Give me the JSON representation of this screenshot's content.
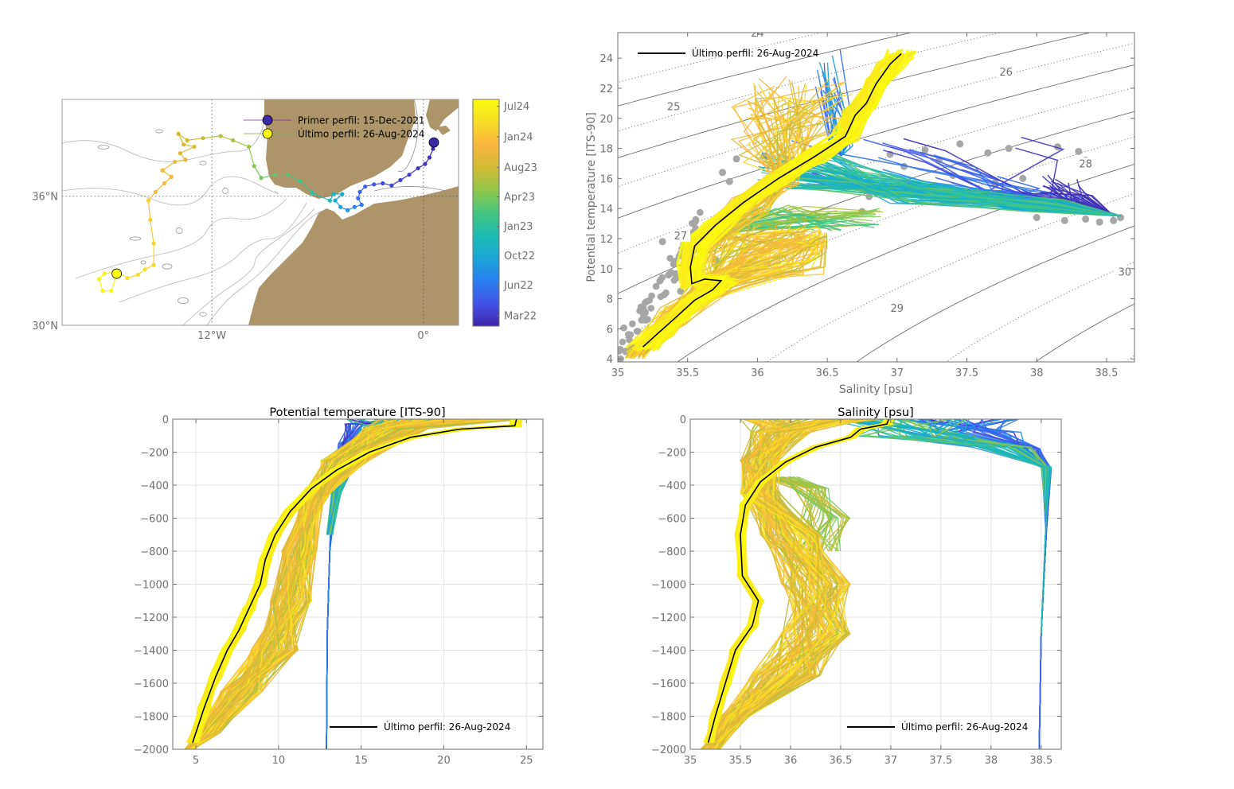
{
  "colors": {
    "land": "#ad9469",
    "axis": "#707070",
    "grid": "#e6e6e6",
    "contour": "#9a9a9a",
    "clim_points": "#a6a6a6",
    "last_profile": "#000000",
    "first_marker": "#3a2aa8",
    "last_marker": "#ffff10",
    "colormap": [
      "#3e26a8",
      "#4353e8",
      "#2a7ff1",
      "#1aa7d6",
      "#1cbcb2",
      "#45c67f",
      "#91c64a",
      "#d2ba32",
      "#f9b63e",
      "#f8dc27",
      "#f9fb0e"
    ]
  },
  "chart_data": [
    {
      "id": "map",
      "type": "scatter",
      "title": "",
      "xlabel": "",
      "ylabel": "",
      "xlim": [
        -20.5,
        2.0
      ],
      "ylim": [
        30.0,
        40.5
      ],
      "x_ticks": [
        {
          "value": -12,
          "label": "12°W"
        },
        {
          "value": 0,
          "label": "0°"
        }
      ],
      "y_ticks": [
        {
          "value": 30,
          "label": "30°N"
        },
        {
          "value": 36,
          "label": "36°N"
        }
      ],
      "grid": "dotted",
      "legend": [
        {
          "label": "Primer perfil: 15-Dec-2021",
          "marker_color": "#3a2aa8",
          "line_color": "#7b2e8e"
        },
        {
          "label": "Último perfil: 26-Aug-2024",
          "marker_color": "#ffff10",
          "line_color": "#6ab43c"
        }
      ],
      "legend_placement": "top-right",
      "first_profile": {
        "lon": 0.6,
        "lat": 38.5
      },
      "last_profile": {
        "lon": -17.4,
        "lat": 32.4
      },
      "track": [
        {
          "lon": 0.6,
          "lat": 38.5,
          "t": 0.0
        },
        {
          "lon": 0.55,
          "lat": 38.2,
          "t": 0.01
        },
        {
          "lon": 0.35,
          "lat": 37.8,
          "t": 0.02
        },
        {
          "lon": 0.1,
          "lat": 37.5,
          "t": 0.03
        },
        {
          "lon": -0.3,
          "lat": 37.3,
          "t": 0.04
        },
        {
          "lon": -0.8,
          "lat": 37.0,
          "t": 0.05
        },
        {
          "lon": -1.3,
          "lat": 36.75,
          "t": 0.06
        },
        {
          "lon": -1.8,
          "lat": 36.5,
          "t": 0.07
        },
        {
          "lon": -2.3,
          "lat": 36.6,
          "t": 0.08
        },
        {
          "lon": -2.8,
          "lat": 36.55,
          "t": 0.1
        },
        {
          "lon": -3.3,
          "lat": 36.45,
          "t": 0.12
        },
        {
          "lon": -3.6,
          "lat": 36.2,
          "t": 0.14
        },
        {
          "lon": -3.7,
          "lat": 35.9,
          "t": 0.16
        },
        {
          "lon": -3.5,
          "lat": 35.6,
          "t": 0.18
        },
        {
          "lon": -3.9,
          "lat": 35.5,
          "t": 0.21
        },
        {
          "lon": -4.3,
          "lat": 35.35,
          "t": 0.24
        },
        {
          "lon": -4.7,
          "lat": 35.5,
          "t": 0.27
        },
        {
          "lon": -5.0,
          "lat": 35.8,
          "t": 0.3
        },
        {
          "lon": -4.6,
          "lat": 36.1,
          "t": 0.33
        },
        {
          "lon": -5.1,
          "lat": 36.1,
          "t": 0.36
        },
        {
          "lon": -5.3,
          "lat": 35.8,
          "t": 0.4
        },
        {
          "lon": -6.3,
          "lat": 36.15,
          "t": 0.44
        },
        {
          "lon": -7.0,
          "lat": 36.7,
          "t": 0.48
        },
        {
          "lon": -7.7,
          "lat": 37.0,
          "t": 0.52
        },
        {
          "lon": -8.4,
          "lat": 37.0,
          "t": 0.54
        },
        {
          "lon": -9.2,
          "lat": 36.85,
          "t": 0.56
        },
        {
          "lon": -9.6,
          "lat": 37.4,
          "t": 0.59
        },
        {
          "lon": -9.9,
          "lat": 38.3,
          "t": 0.62
        },
        {
          "lon": -10.8,
          "lat": 38.6,
          "t": 0.64
        },
        {
          "lon": -11.5,
          "lat": 38.8,
          "t": 0.66
        },
        {
          "lon": -12.5,
          "lat": 38.7,
          "t": 0.68
        },
        {
          "lon": -13.4,
          "lat": 38.6,
          "t": 0.7
        },
        {
          "lon": -13.9,
          "lat": 38.9,
          "t": 0.71
        },
        {
          "lon": -13.6,
          "lat": 38.4,
          "t": 0.72
        },
        {
          "lon": -13.0,
          "lat": 38.3,
          "t": 0.73
        },
        {
          "lon": -13.8,
          "lat": 38.0,
          "t": 0.74
        },
        {
          "lon": -13.5,
          "lat": 37.7,
          "t": 0.75
        },
        {
          "lon": -14.1,
          "lat": 37.6,
          "t": 0.76
        },
        {
          "lon": -14.8,
          "lat": 37.2,
          "t": 0.78
        },
        {
          "lon": -14.3,
          "lat": 36.9,
          "t": 0.79
        },
        {
          "lon": -14.7,
          "lat": 36.6,
          "t": 0.8
        },
        {
          "lon": -15.2,
          "lat": 36.2,
          "t": 0.82
        },
        {
          "lon": -15.6,
          "lat": 35.8,
          "t": 0.84
        },
        {
          "lon": -15.5,
          "lat": 34.9,
          "t": 0.86
        },
        {
          "lon": -15.3,
          "lat": 33.8,
          "t": 0.88
        },
        {
          "lon": -15.3,
          "lat": 32.8,
          "t": 0.89
        },
        {
          "lon": -15.8,
          "lat": 32.6,
          "t": 0.9
        },
        {
          "lon": -16.2,
          "lat": 32.35,
          "t": 0.91
        },
        {
          "lon": -16.8,
          "lat": 32.2,
          "t": 0.93
        },
        {
          "lon": -17.4,
          "lat": 32.5,
          "t": 0.95
        },
        {
          "lon": -18.1,
          "lat": 32.4,
          "t": 0.96
        },
        {
          "lon": -18.4,
          "lat": 32.15,
          "t": 0.97
        },
        {
          "lon": -18.2,
          "lat": 31.6,
          "t": 0.98
        },
        {
          "lon": -17.7,
          "lat": 31.6,
          "t": 0.99
        },
        {
          "lon": -17.4,
          "lat": 32.4,
          "t": 1.0
        }
      ]
    },
    {
      "id": "colorbar",
      "type": "heatmap",
      "title": "",
      "range_labels_note": "time colorbar",
      "tick_labels": [
        "Jul24",
        "Jan24",
        "Aug23",
        "Apr23",
        "Jan23",
        "Oct22",
        "Jun22",
        "Mar22"
      ],
      "tick_positions": [
        0.97,
        0.835,
        0.7,
        0.57,
        0.44,
        0.31,
        0.18,
        0.045
      ]
    },
    {
      "id": "ts",
      "type": "line",
      "title": "",
      "xlabel": "Salinity [psu]",
      "ylabel": "Potential temperature [ITS-90]",
      "xlim": [
        35.0,
        38.7
      ],
      "ylim": [
        3.8,
        25.7
      ],
      "x_ticks": [
        35,
        35.5,
        36,
        36.5,
        37,
        37.5,
        38,
        38.5
      ],
      "y_ticks": [
        4,
        6,
        8,
        10,
        12,
        14,
        16,
        18,
        20,
        22,
        24
      ],
      "grid": false,
      "isopycnal_labels": [
        {
          "label": "24",
          "s": 36.0,
          "t": 25.6
        },
        {
          "label": "25",
          "s": 35.4,
          "t": 20.7
        },
        {
          "label": "26",
          "s": 37.78,
          "t": 23.0
        },
        {
          "label": "27",
          "s": 35.45,
          "t": 12.1
        },
        {
          "label": "28",
          "s": 38.35,
          "t": 16.9
        },
        {
          "label": "29",
          "s": 37.0,
          "t": 7.3
        },
        {
          "label": "30",
          "s": 38.63,
          "t": 9.7
        }
      ],
      "legend": [
        {
          "label": "Último perfil: 26-Aug-2024",
          "color": "#000000"
        }
      ],
      "legend_placement": "top-left",
      "last_profile": [
        {
          "s": 35.18,
          "t": 4.8
        },
        {
          "s": 35.3,
          "t": 5.8
        },
        {
          "s": 35.42,
          "t": 6.8
        },
        {
          "s": 35.55,
          "t": 7.9
        },
        {
          "s": 35.68,
          "t": 8.6
        },
        {
          "s": 35.74,
          "t": 9.2
        },
        {
          "s": 35.62,
          "t": 9.3
        },
        {
          "s": 35.53,
          "t": 9.0
        },
        {
          "s": 35.52,
          "t": 10.1
        },
        {
          "s": 35.55,
          "t": 11.5
        },
        {
          "s": 35.7,
          "t": 12.9
        },
        {
          "s": 35.9,
          "t": 14.4
        },
        {
          "s": 36.15,
          "t": 16.0
        },
        {
          "s": 36.4,
          "t": 17.4
        },
        {
          "s": 36.63,
          "t": 18.8
        },
        {
          "s": 36.7,
          "t": 20.2
        },
        {
          "s": 36.78,
          "t": 21.0
        },
        {
          "s": 36.85,
          "t": 22.3
        },
        {
          "s": 36.95,
          "t": 23.6
        },
        {
          "s": 37.03,
          "t": 24.3
        }
      ],
      "clim_points": [
        {
          "s": 35.02,
          "t": 4.0
        },
        {
          "s": 35.1,
          "t": 4.5
        },
        {
          "s": 35.2,
          "t": 5.1
        },
        {
          "s": 35.3,
          "t": 5.8
        },
        {
          "s": 35.4,
          "t": 6.6
        },
        {
          "s": 35.45,
          "t": 8.5
        },
        {
          "s": 35.42,
          "t": 9.4
        },
        {
          "s": 35.4,
          "t": 10.3
        },
        {
          "s": 35.45,
          "t": 11.0
        },
        {
          "s": 35.32,
          "t": 11.8
        },
        {
          "s": 35.55,
          "t": 10.0
        },
        {
          "s": 35.7,
          "t": 10.6
        },
        {
          "s": 35.9,
          "t": 11.2
        },
        {
          "s": 36.1,
          "t": 11.4
        },
        {
          "s": 36.3,
          "t": 12.0
        },
        {
          "s": 35.8,
          "t": 15.8
        },
        {
          "s": 35.75,
          "t": 16.4
        },
        {
          "s": 35.85,
          "t": 17.3
        },
        {
          "s": 36.05,
          "t": 17.5
        },
        {
          "s": 36.75,
          "t": 13.8
        },
        {
          "s": 36.8,
          "t": 14.8
        },
        {
          "s": 36.95,
          "t": 17.6
        },
        {
          "s": 37.05,
          "t": 16.8
        },
        {
          "s": 37.2,
          "t": 17.9
        },
        {
          "s": 37.3,
          "t": 17.2
        },
        {
          "s": 37.4,
          "t": 16.2
        },
        {
          "s": 37.45,
          "t": 18.3
        },
        {
          "s": 37.65,
          "t": 17.7
        },
        {
          "s": 37.8,
          "t": 18.0
        },
        {
          "s": 37.7,
          "t": 15.7
        },
        {
          "s": 37.6,
          "t": 15.0
        },
        {
          "s": 38.15,
          "t": 18.1
        },
        {
          "s": 38.3,
          "t": 17.8
        },
        {
          "s": 38.35,
          "t": 17.2
        },
        {
          "s": 37.9,
          "t": 16.0
        },
        {
          "s": 38.0,
          "t": 13.4
        },
        {
          "s": 38.2,
          "t": 13.2
        },
        {
          "s": 38.35,
          "t": 13.3
        },
        {
          "s": 38.45,
          "t": 13.1
        },
        {
          "s": 38.55,
          "t": 13.2
        },
        {
          "s": 38.6,
          "t": 13.4
        }
      ]
    },
    {
      "id": "temperature_profile",
      "type": "line",
      "title": "Potential temperature [ITS-90]",
      "xlabel": "",
      "ylabel": "",
      "xlim": [
        3.6,
        26.0
      ],
      "ylim": [
        -2000,
        0
      ],
      "x_ticks": [
        5,
        10,
        15,
        20,
        25
      ],
      "y_ticks": [
        0,
        -200,
        -400,
        -600,
        -800,
        -1000,
        -1200,
        -1400,
        -1600,
        -1800,
        -2000
      ],
      "grid": true,
      "legend": [
        {
          "label": "Último perfil: 26-Aug-2024",
          "color": "#000000"
        }
      ],
      "legend_placement": "bottom-right",
      "last_profile": [
        {
          "x": 24.4,
          "z": 0
        },
        {
          "x": 24.3,
          "z": -40
        },
        {
          "x": 21.0,
          "z": -60
        },
        {
          "x": 18.0,
          "z": -110
        },
        {
          "x": 15.5,
          "z": -200
        },
        {
          "x": 13.5,
          "z": -310
        },
        {
          "x": 12.0,
          "z": -420
        },
        {
          "x": 10.7,
          "z": -560
        },
        {
          "x": 9.8,
          "z": -700
        },
        {
          "x": 9.2,
          "z": -850
        },
        {
          "x": 8.9,
          "z": -1000
        },
        {
          "x": 8.2,
          "z": -1150
        },
        {
          "x": 7.6,
          "z": -1280
        },
        {
          "x": 6.9,
          "z": -1400
        },
        {
          "x": 6.2,
          "z": -1560
        },
        {
          "x": 5.5,
          "z": -1750
        },
        {
          "x": 4.8,
          "z": -1960
        }
      ]
    },
    {
      "id": "salinity_profile",
      "type": "line",
      "title": "Salinity [psu]",
      "xlabel": "",
      "ylabel": "",
      "xlim": [
        35.0,
        38.7
      ],
      "ylim": [
        -2000,
        0
      ],
      "x_ticks": [
        35,
        35.5,
        36,
        36.5,
        37,
        37.5,
        38,
        38.5
      ],
      "y_ticks": [
        0,
        -200,
        -400,
        -600,
        -800,
        -1000,
        -1200,
        -1400,
        -1600,
        -1800,
        -2000
      ],
      "grid": true,
      "legend": [
        {
          "label": "Último perfil: 26-Aug-2024",
          "color": "#000000"
        }
      ],
      "legend_placement": "bottom-right",
      "last_profile": [
        {
          "x": 36.98,
          "z": 0
        },
        {
          "x": 36.96,
          "z": -30
        },
        {
          "x": 36.7,
          "z": -60
        },
        {
          "x": 36.6,
          "z": -110
        },
        {
          "x": 36.25,
          "z": -170
        },
        {
          "x": 35.95,
          "z": -260
        },
        {
          "x": 35.7,
          "z": -380
        },
        {
          "x": 35.55,
          "z": -520
        },
        {
          "x": 35.5,
          "z": -700
        },
        {
          "x": 35.52,
          "z": -950
        },
        {
          "x": 35.68,
          "z": -1100
        },
        {
          "x": 35.62,
          "z": -1250
        },
        {
          "x": 35.45,
          "z": -1400
        },
        {
          "x": 35.35,
          "z": -1600
        },
        {
          "x": 35.25,
          "z": -1800
        },
        {
          "x": 35.18,
          "z": -1960
        }
      ]
    }
  ]
}
